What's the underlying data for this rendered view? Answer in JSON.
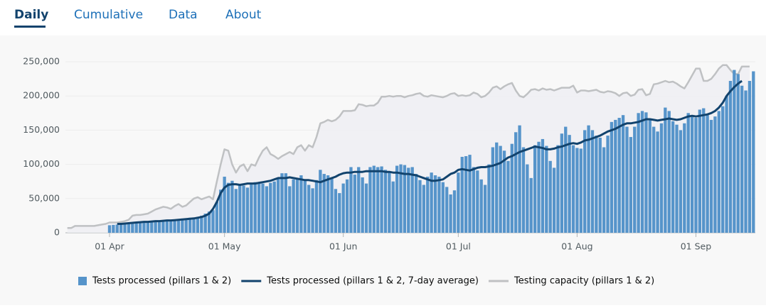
{
  "tabs": [
    "Daily",
    "Cumulative",
    "Data",
    "About"
  ],
  "chart_data": {
    "type": "bar",
    "categories": [
      null,
      null,
      null,
      null,
      null,
      null,
      null,
      null,
      null,
      null,
      null,
      "01 Apr",
      null,
      null,
      null,
      null,
      null,
      null,
      null,
      null,
      null,
      null,
      null,
      null,
      null,
      null,
      null,
      null,
      null,
      null,
      null,
      null,
      null,
      null,
      null,
      null,
      null,
      null,
      null,
      null,
      null,
      "01 May",
      null,
      null,
      null,
      null,
      null,
      null,
      null,
      null,
      null,
      null,
      null,
      null,
      null,
      null,
      null,
      null,
      null,
      null,
      null,
      null,
      null,
      null,
      null,
      null,
      null,
      null,
      null,
      null,
      null,
      null,
      "01 Jun",
      null,
      null,
      null,
      null,
      null,
      null,
      null,
      null,
      null,
      null,
      null,
      null,
      null,
      null,
      null,
      null,
      null,
      null,
      null,
      null,
      null,
      null,
      null,
      null,
      null,
      null,
      null,
      null,
      null,
      "01 Jul",
      null,
      null,
      null,
      null,
      null,
      null,
      null,
      null,
      null,
      null,
      null,
      null,
      null,
      null,
      null,
      null,
      null,
      null,
      null,
      null,
      null,
      null,
      null,
      null,
      null,
      null,
      null,
      null,
      null,
      null,
      "01 Aug",
      null,
      null,
      null,
      null,
      null,
      null,
      null,
      null,
      null,
      null,
      null,
      null,
      null,
      null,
      null,
      null,
      null,
      null,
      null,
      null,
      null,
      null,
      null,
      null,
      null,
      null,
      null,
      null,
      null,
      null,
      "01 Sep",
      null,
      null,
      null,
      null,
      null,
      null,
      null,
      null,
      null,
      null,
      null,
      null,
      null,
      null,
      null
    ],
    "series": [
      {
        "name": "Tests processed (pillars 1 & 2)",
        "type": "bar",
        "color": "#5694ca",
        "values": [
          null,
          null,
          null,
          null,
          null,
          null,
          null,
          null,
          null,
          null,
          null,
          11000,
          11500,
          12000,
          13000,
          14000,
          14500,
          14000,
          15000,
          16000,
          16500,
          16000,
          17000,
          17500,
          18000,
          18500,
          18000,
          19000,
          19500,
          20000,
          20000,
          21000,
          22000,
          20000,
          23000,
          25000,
          28000,
          31000,
          33000,
          45000,
          63000,
          82000,
          73000,
          76000,
          64000,
          70000,
          69000,
          66000,
          72000,
          74000,
          73000,
          72000,
          68000,
          73000,
          75000,
          80000,
          87000,
          87000,
          68000,
          78000,
          80000,
          84000,
          76000,
          70000,
          65000,
          77000,
          92000,
          86000,
          84000,
          80000,
          64000,
          58000,
          72000,
          78000,
          96000,
          85000,
          96000,
          81000,
          72000,
          96000,
          98000,
          96000,
          97000,
          92000,
          88000,
          75000,
          98000,
          100000,
          99000,
          95000,
          96000,
          86000,
          77000,
          70000,
          82000,
          88000,
          84000,
          82000,
          74000,
          67000,
          56000,
          62000,
          88000,
          111000,
          112000,
          114000,
          96000,
          91000,
          78000,
          70000,
          100000,
          125000,
          132000,
          127000,
          120000,
          105000,
          130000,
          147000,
          157000,
          125000,
          100000,
          80000,
          128000,
          133000,
          137000,
          127000,
          105000,
          95000,
          128000,
          145000,
          155000,
          143000,
          128000,
          124000,
          123000,
          150000,
          157000,
          150000,
          142000,
          139000,
          125000,
          142000,
          162000,
          165000,
          168000,
          172000,
          155000,
          140000,
          155000,
          175000,
          178000,
          176000,
          165000,
          155000,
          148000,
          160000,
          183000,
          178000,
          163000,
          158000,
          150000,
          160000,
          175000,
          170000,
          168000,
          180000,
          182000,
          172000,
          165000,
          170000,
          178000,
          185000,
          200000,
          222000,
          238000,
          232000,
          215000,
          208000,
          222000,
          236000
        ]
      },
      {
        "name": "Tests processed (pillars 1 & 2, 7-day average)",
        "type": "line",
        "color": "#12436d",
        "values": [
          null,
          null,
          null,
          null,
          null,
          null,
          null,
          null,
          null,
          null,
          null,
          null,
          null,
          13000,
          13000,
          13500,
          14000,
          14500,
          15000,
          15500,
          16000,
          16000,
          16500,
          17000,
          17000,
          17500,
          18000,
          18000,
          18500,
          19000,
          19500,
          20000,
          20500,
          21000,
          22000,
          23000,
          25000,
          28000,
          35000,
          45000,
          58000,
          66000,
          70000,
          71000,
          71000,
          70000,
          71000,
          72000,
          72000,
          72000,
          73000,
          74000,
          75000,
          76000,
          78000,
          80000,
          80000,
          80000,
          81000,
          80000,
          79000,
          78000,
          77000,
          77000,
          76000,
          75000,
          74000,
          76000,
          78000,
          80000,
          82000,
          85000,
          87000,
          88000,
          88000,
          89000,
          89000,
          89000,
          90000,
          90000,
          90000,
          90000,
          90000,
          89000,
          89000,
          88000,
          88000,
          87000,
          86000,
          86000,
          85000,
          84000,
          82000,
          80000,
          78000,
          76000,
          76000,
          77000,
          78000,
          82000,
          86000,
          88000,
          92000,
          93000,
          92000,
          91000,
          93000,
          95000,
          96000,
          96000,
          97000,
          98000,
          100000,
          102000,
          106000,
          110000,
          112000,
          115000,
          118000,
          120000,
          122000,
          124000,
          126000,
          125000,
          124000,
          122000,
          122000,
          123000,
          125000,
          126000,
          128000,
          130000,
          131000,
          130000,
          132000,
          135000,
          136000,
          138000,
          140000,
          142000,
          145000,
          148000,
          150000,
          152000,
          155000,
          158000,
          160000,
          160000,
          161000,
          162000,
          164000,
          166000,
          166000,
          165000,
          164000,
          165000,
          166000,
          167000,
          166000,
          165000,
          166000,
          168000,
          170000,
          171000,
          170000,
          171000,
          172000,
          173000,
          175000,
          178000,
          183000,
          190000,
          200000,
          207000,
          213000,
          218000,
          222000,
          null,
          null,
          null
        ]
      },
      {
        "name": "Testing capacity (pillars 1 & 2)",
        "type": "line",
        "color": "#bfc1c3",
        "values": [
          7000,
          7000,
          10000,
          10000,
          10000,
          10000,
          10000,
          10000,
          11000,
          12000,
          13000,
          15000,
          15000,
          15000,
          16000,
          17000,
          19000,
          25000,
          26000,
          26000,
          27000,
          28000,
          31000,
          34000,
          36000,
          38000,
          37000,
          35000,
          39000,
          42000,
          38000,
          40000,
          45000,
          50000,
          52000,
          49000,
          51000,
          53000,
          49000,
          75000,
          100000,
          122000,
          120000,
          100000,
          88000,
          97000,
          100000,
          90000,
          100000,
          98000,
          110000,
          120000,
          125000,
          115000,
          112000,
          108000,
          112000,
          115000,
          118000,
          115000,
          125000,
          128000,
          120000,
          128000,
          125000,
          140000,
          160000,
          162000,
          165000,
          163000,
          165000,
          170000,
          178000,
          178000,
          178000,
          179000,
          188000,
          187000,
          185000,
          186000,
          186000,
          190000,
          199000,
          199000,
          200000,
          199000,
          200000,
          200000,
          198000,
          200000,
          201000,
          203000,
          204000,
          200000,
          199000,
          201000,
          200000,
          199000,
          198000,
          200000,
          203000,
          204000,
          200000,
          201000,
          200000,
          201000,
          205000,
          203000,
          198000,
          200000,
          205000,
          212000,
          214000,
          210000,
          214000,
          217000,
          219000,
          208000,
          200000,
          198000,
          203000,
          209000,
          210000,
          208000,
          211000,
          209000,
          210000,
          208000,
          210000,
          212000,
          212000,
          212000,
          215000,
          205000,
          208000,
          208000,
          207000,
          208000,
          209000,
          206000,
          205000,
          207000,
          206000,
          204000,
          200000,
          204000,
          205000,
          200000,
          202000,
          209000,
          210000,
          201000,
          203000,
          217000,
          218000,
          220000,
          222000,
          220000,
          221000,
          218000,
          214000,
          211000,
          220000,
          230000,
          240000,
          240000,
          222000,
          222000,
          225000,
          232000,
          240000,
          245000,
          245000,
          238000,
          232000,
          232000,
          243000,
          243000,
          243000,
          null
        ]
      }
    ],
    "ylim": [
      0,
      250000
    ],
    "yticks": [
      0,
      {
        "value": 50000,
        "label": "50,000"
      },
      {
        "value": 100000,
        "label": "100,000"
      },
      {
        "value": 150000,
        "label": "150,000"
      },
      {
        "value": 200000,
        "label": "200,000"
      },
      {
        "value": 250000,
        "label": "250,000"
      }
    ],
    "grid": true,
    "legend": "bottom"
  }
}
